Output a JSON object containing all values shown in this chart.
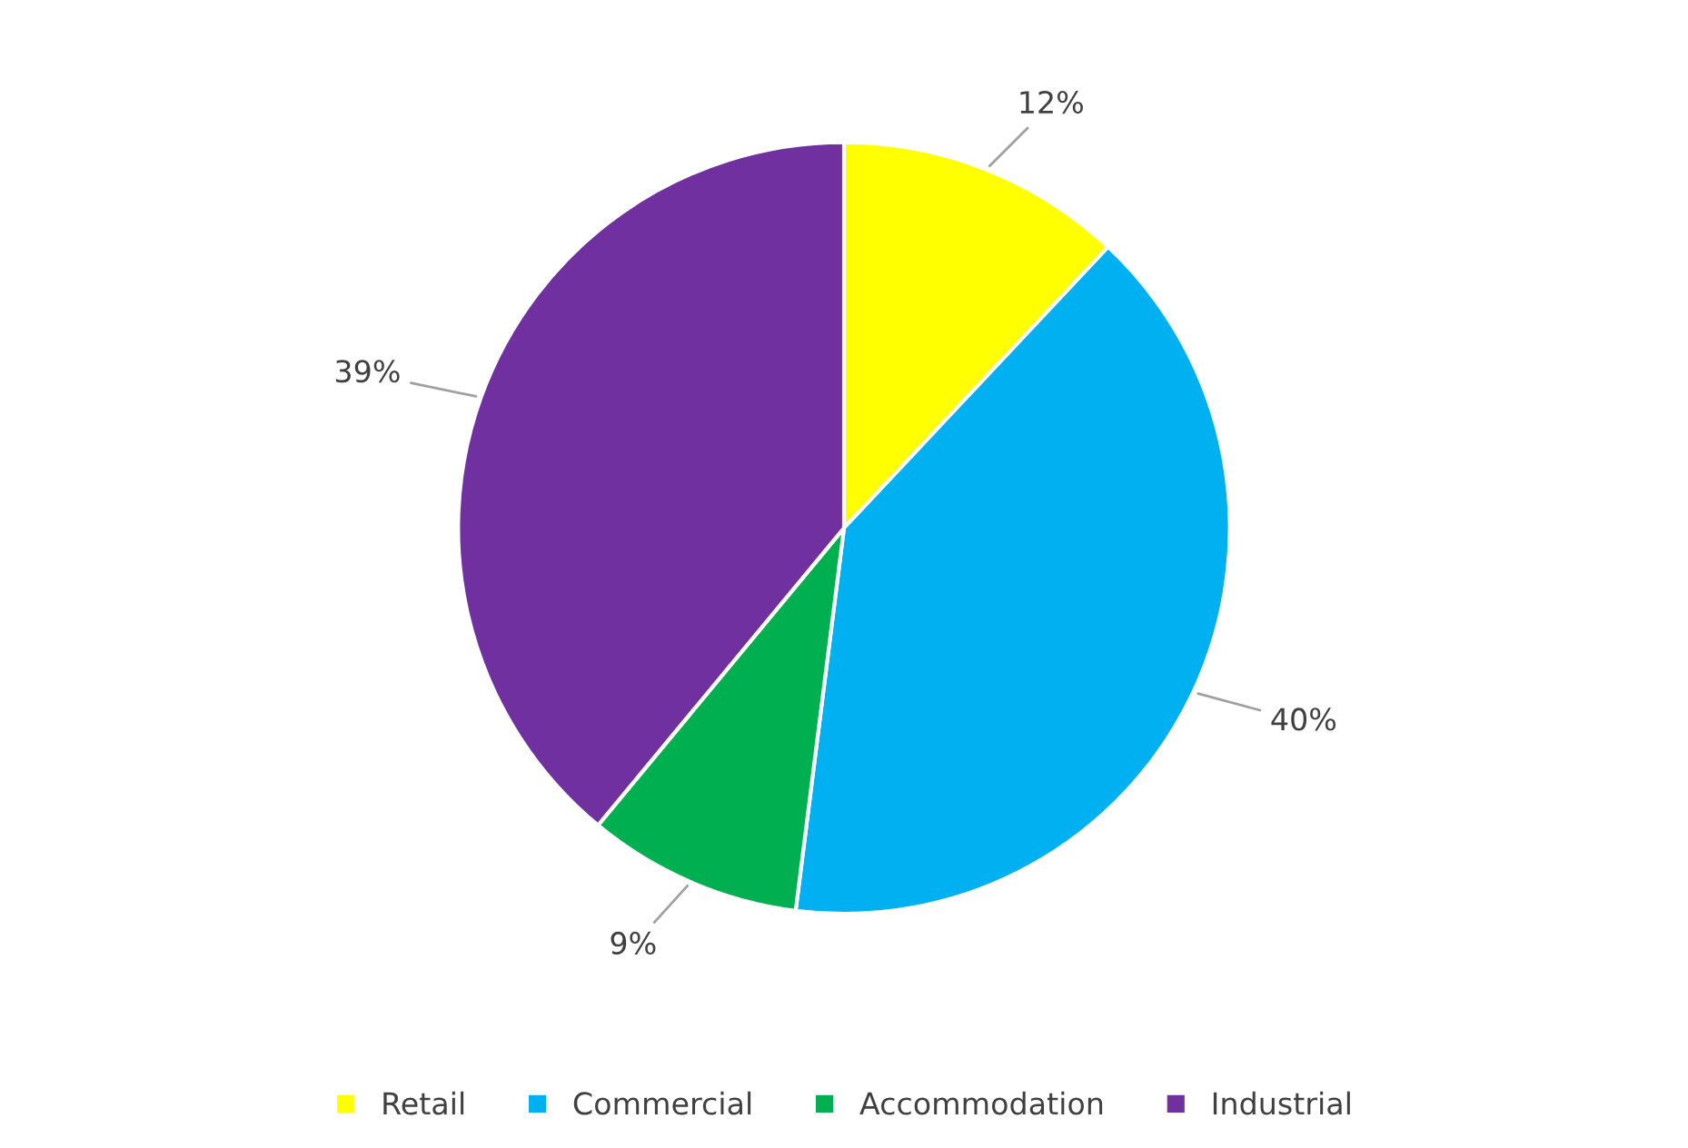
{
  "chart_data": {
    "type": "pie",
    "categories": [
      "Retail",
      "Commercial",
      "Accommodation",
      "Industrial"
    ],
    "values": [
      12,
      40,
      9,
      39
    ],
    "value_labels": [
      "12%",
      "40%",
      "9%",
      "39%"
    ],
    "colors": [
      "#ffff00",
      "#00b0f0",
      "#00b050",
      "#7030a0"
    ],
    "legend": "bottom"
  }
}
